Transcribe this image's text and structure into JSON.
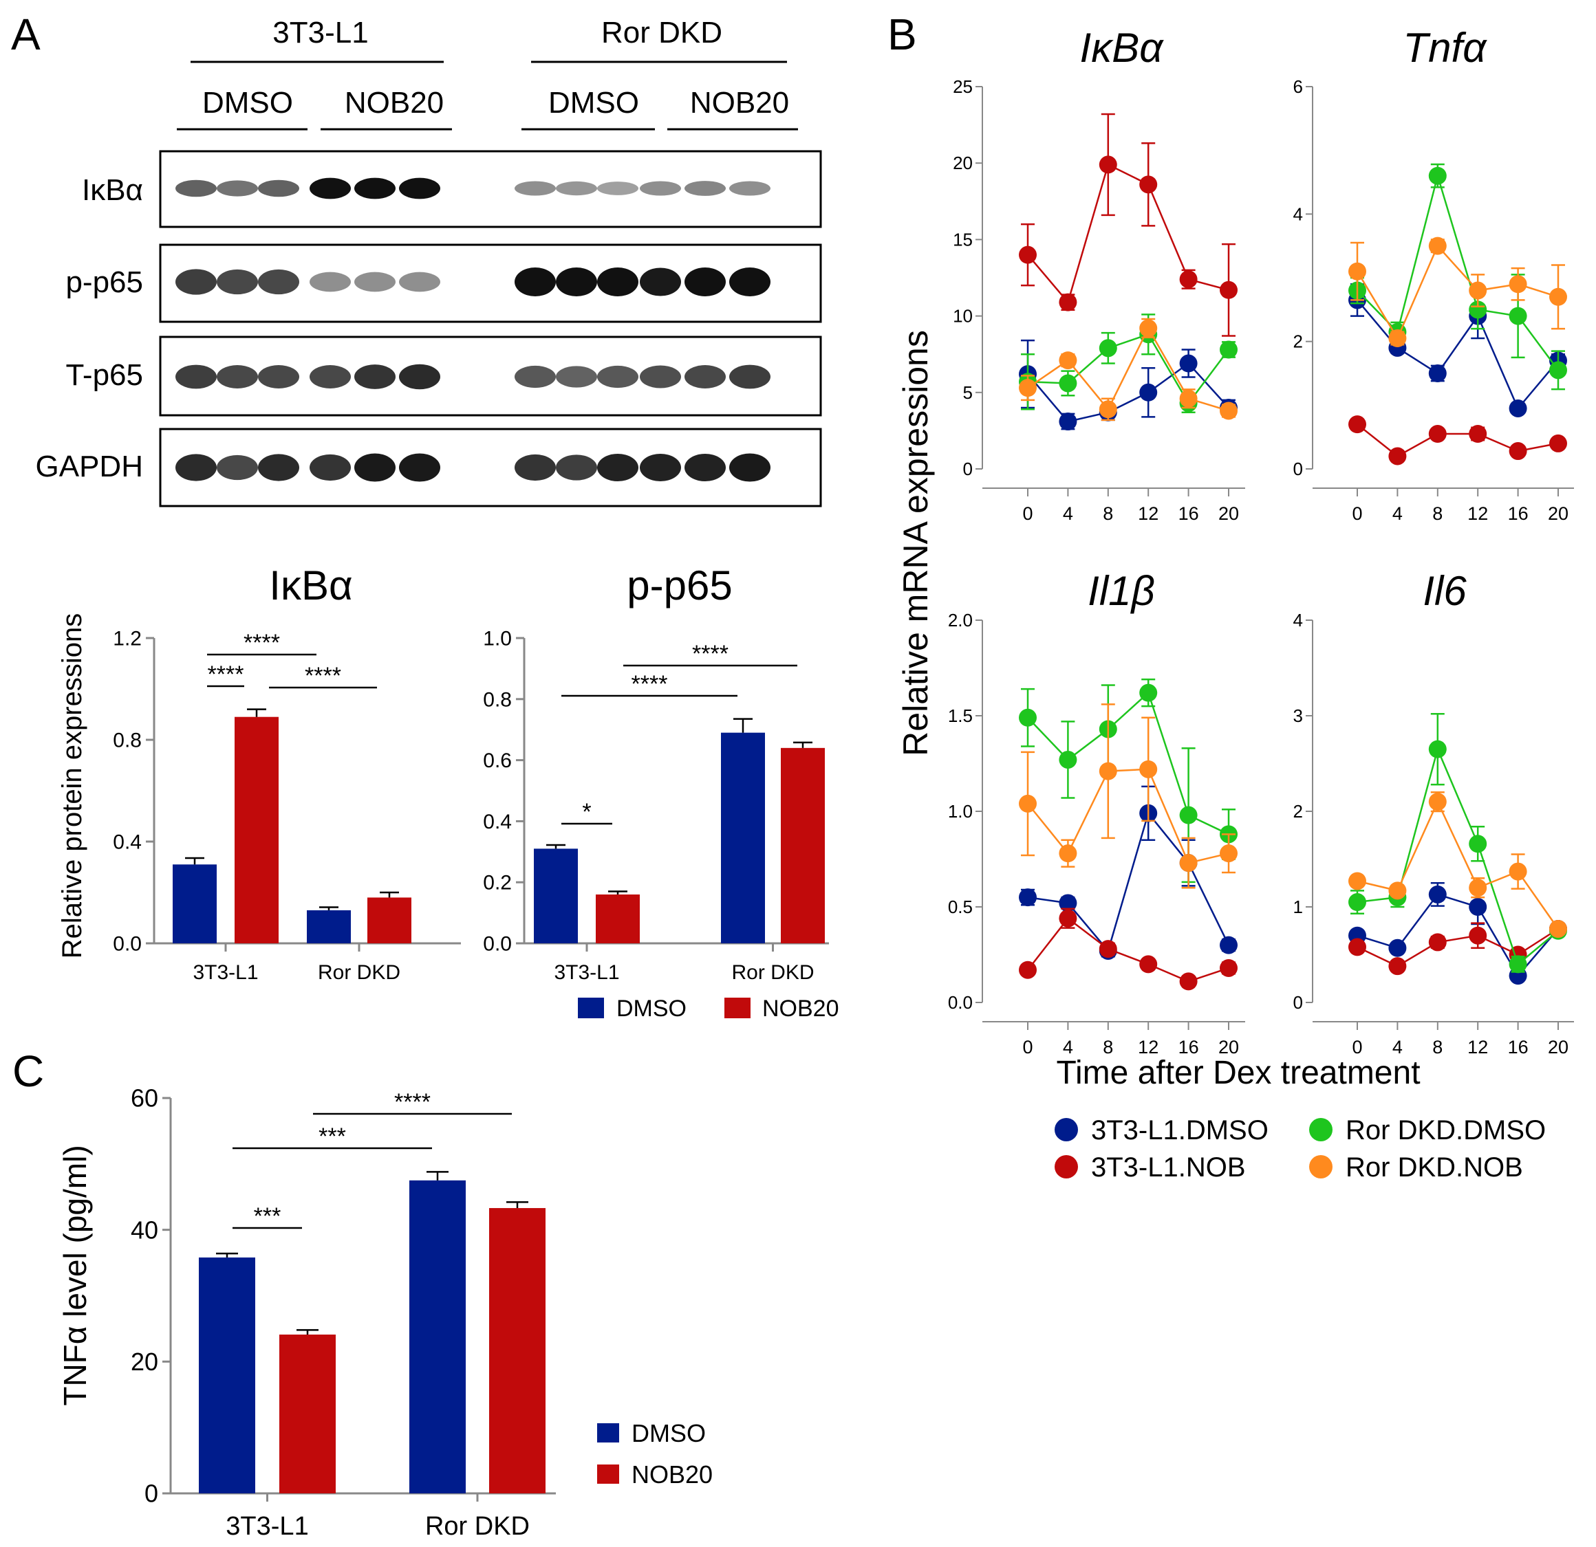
{
  "colors": {
    "dmso": "#001c8c",
    "nob": "#c10a0b",
    "ror_dmso": "#1ec51e",
    "ror_nob": "#ff8a1e",
    "blot_band": "#111111",
    "axis": "#888888"
  },
  "panel_labels": {
    "a": "A",
    "b": "B",
    "c": "C"
  },
  "blot": {
    "group_labels": [
      "3T3-L1",
      "Ror DKD"
    ],
    "treatment_labels": [
      "DMSO",
      "NOB20",
      "DMSO",
      "NOB20"
    ],
    "row_labels": [
      "IκBα",
      "p-p65",
      "T-p65",
      "GAPDH"
    ],
    "lanes_per_treatment": 3,
    "band_intensity": [
      [
        0.55,
        0.45,
        0.55,
        1.0,
        1.0,
        1.0,
        0.3,
        0.25,
        0.2,
        0.3,
        0.35,
        0.3
      ],
      [
        0.75,
        0.7,
        0.7,
        0.3,
        0.3,
        0.3,
        1.0,
        1.0,
        1.0,
        0.95,
        1.0,
        1.0
      ],
      [
        0.75,
        0.7,
        0.7,
        0.7,
        0.8,
        0.85,
        0.6,
        0.55,
        0.6,
        0.65,
        0.7,
        0.75
      ],
      [
        0.85,
        0.7,
        0.85,
        0.8,
        0.95,
        0.95,
        0.8,
        0.75,
        0.9,
        0.9,
        0.9,
        0.95
      ]
    ]
  },
  "chart_data": [
    {
      "id": "A-ikba",
      "type": "bar",
      "title": "IκBα",
      "ylabel": "Relative protein expressions",
      "categories": [
        "3T3-L1",
        "Ror DKD"
      ],
      "series": [
        {
          "name": "DMSO",
          "values": [
            0.31,
            0.13
          ],
          "errors": [
            0.025,
            0.012
          ]
        },
        {
          "name": "NOB20",
          "values": [
            0.89,
            0.18
          ],
          "errors": [
            0.03,
            0.02
          ]
        }
      ],
      "ylim": [
        0,
        1.2
      ],
      "yticks": [
        "0.0",
        "0.4",
        "0.8",
        "1.2"
      ],
      "ytick_values": [
        0,
        0.4,
        0.8,
        1.2
      ],
      "significance": [
        {
          "from": "3T3-L1.DMSO",
          "to": "Ror DKD.DMSO",
          "label": "****"
        },
        {
          "from": "3T3-L1.DMSO",
          "to": "3T3-L1.NOB20",
          "label": "****"
        },
        {
          "from": "3T3-L1.NOB20",
          "to": "Ror DKD.NOB20",
          "label": "****"
        }
      ]
    },
    {
      "id": "A-pp65",
      "type": "bar",
      "title": "p-p65",
      "categories": [
        "3T3-L1",
        "Ror DKD"
      ],
      "series": [
        {
          "name": "DMSO",
          "values": [
            0.31,
            0.69
          ],
          "errors": [
            0.012,
            0.045
          ]
        },
        {
          "name": "NOB20",
          "values": [
            0.16,
            0.64
          ],
          "errors": [
            0.01,
            0.018
          ]
        }
      ],
      "ylim": [
        0,
        1.0
      ],
      "yticks": [
        "0.0",
        "0.2",
        "0.4",
        "0.6",
        "0.8",
        "1.0"
      ],
      "ytick_values": [
        0,
        0.2,
        0.4,
        0.6,
        0.8,
        1.0
      ],
      "significance": [
        {
          "from": "3T3-L1.NOB20",
          "to": "Ror DKD.NOB20",
          "label": "****"
        },
        {
          "from": "3T3-L1.DMSO",
          "to": "Ror DKD.DMSO",
          "label": "****"
        },
        {
          "from": "3T3-L1.DMSO",
          "to": "3T3-L1.NOB20",
          "label": "*"
        }
      ],
      "legend": [
        "DMSO",
        "NOB20"
      ]
    },
    {
      "id": "B-ikba",
      "type": "line",
      "title": "IκBα",
      "x": [
        0,
        4,
        8,
        12,
        16,
        20
      ],
      "ylim": [
        0,
        25
      ],
      "yticks": [
        "0",
        "5",
        "10",
        "15",
        "20",
        "25"
      ],
      "ytick_values": [
        0,
        5,
        10,
        15,
        20,
        25
      ],
      "series": [
        {
          "name": "3T3-L1.DMSO",
          "values": [
            6.2,
            3.1,
            3.7,
            5.0,
            6.9,
            4.0
          ],
          "errors": [
            2.2,
            0.5,
            0.5,
            1.6,
            0.9,
            0.5
          ]
        },
        {
          "name": "3T3-L1.NOB",
          "values": [
            14.0,
            10.9,
            19.9,
            18.6,
            12.4,
            11.7
          ],
          "errors": [
            2.0,
            0.5,
            3.3,
            2.7,
            0.6,
            3.0
          ]
        },
        {
          "name": "Ror DKD.DMSO",
          "values": [
            5.7,
            5.6,
            7.9,
            8.8,
            4.3,
            7.8
          ],
          "errors": [
            1.8,
            0.8,
            1.0,
            1.3,
            0.6,
            0.5
          ]
        },
        {
          "name": "Ror DKD.NOB",
          "values": [
            5.3,
            7.1,
            3.9,
            9.2,
            4.6,
            3.8
          ],
          "errors": [
            0.8,
            0.4,
            0.7,
            0.6,
            0.6,
            0.4
          ]
        }
      ]
    },
    {
      "id": "B-tnfa",
      "type": "line",
      "title": "Tnfα",
      "x": [
        0,
        4,
        8,
        12,
        16,
        20
      ],
      "ylim": [
        0,
        6
      ],
      "yticks": [
        "0",
        "2",
        "4",
        "6"
      ],
      "ytick_values": [
        0,
        2,
        4,
        6
      ],
      "series": [
        {
          "name": "3T3-L1.DMSO",
          "values": [
            2.65,
            1.9,
            1.5,
            2.4,
            0.95,
            1.7
          ],
          "errors": [
            0.25,
            0.08,
            0.12,
            0.35,
            0.05,
            0.1
          ]
        },
        {
          "name": "3T3-L1.NOB",
          "values": [
            0.7,
            0.2,
            0.55,
            0.55,
            0.28,
            0.4
          ],
          "errors": [
            0.08,
            0.03,
            0.05,
            0.1,
            0.05,
            0.05
          ]
        },
        {
          "name": "Ror DKD.DMSO",
          "values": [
            2.8,
            2.15,
            4.6,
            2.5,
            2.4,
            1.55
          ],
          "errors": [
            0.2,
            0.15,
            0.18,
            0.3,
            0.65,
            0.3
          ]
        },
        {
          "name": "Ror DKD.NOB",
          "values": [
            3.1,
            2.05,
            3.5,
            2.8,
            2.9,
            2.7
          ],
          "errors": [
            0.45,
            0.1,
            0.1,
            0.25,
            0.25,
            0.5
          ]
        }
      ]
    },
    {
      "id": "B-il1b",
      "type": "line",
      "title": "Il1β",
      "x": [
        0,
        4,
        8,
        12,
        16,
        20
      ],
      "ylim": [
        0,
        2.0
      ],
      "yticks": [
        "0.0",
        "0.5",
        "1.0",
        "1.5",
        "2.0"
      ],
      "ytick_values": [
        0,
        0.5,
        1.0,
        1.5,
        2.0
      ],
      "series": [
        {
          "name": "3T3-L1.DMSO",
          "values": [
            0.55,
            0.52,
            0.27,
            0.99,
            0.73,
            0.3
          ],
          "errors": [
            0.04,
            0.03,
            0.03,
            0.14,
            0.12,
            0.03
          ]
        },
        {
          "name": "3T3-L1.NOB",
          "values": [
            0.17,
            0.44,
            0.28,
            0.2,
            0.11,
            0.18
          ],
          "errors": [
            0.02,
            0.05,
            0.03,
            0.02,
            0.02,
            0.03
          ]
        },
        {
          "name": "Ror DKD.DMSO",
          "values": [
            1.49,
            1.27,
            1.43,
            1.62,
            0.98,
            0.88
          ],
          "errors": [
            0.15,
            0.2,
            0.23,
            0.07,
            0.35,
            0.13
          ]
        },
        {
          "name": "Ror DKD.NOB",
          "values": [
            1.04,
            0.78,
            1.21,
            1.22,
            0.73,
            0.78
          ],
          "errors": [
            0.27,
            0.07,
            0.35,
            0.27,
            0.13,
            0.1
          ]
        }
      ]
    },
    {
      "id": "B-il6",
      "type": "line",
      "title": "Il6",
      "x": [
        0,
        4,
        8,
        12,
        16,
        20
      ],
      "ylim": [
        0,
        4
      ],
      "yticks": [
        "0",
        "1",
        "2",
        "3",
        "4"
      ],
      "ytick_values": [
        0,
        1,
        2,
        3,
        4
      ],
      "series": [
        {
          "name": "3T3-L1.DMSO",
          "values": [
            0.7,
            0.57,
            1.13,
            1.0,
            0.28,
            0.77
          ],
          "errors": [
            0.05,
            0.04,
            0.12,
            0.18,
            0.03,
            0.05
          ]
        },
        {
          "name": "3T3-L1.NOB",
          "values": [
            0.58,
            0.38,
            0.63,
            0.7,
            0.5,
            0.77
          ],
          "errors": [
            0.04,
            0.04,
            0.06,
            0.13,
            0.05,
            0.05
          ]
        },
        {
          "name": "Ror DKD.DMSO",
          "values": [
            1.05,
            1.1,
            2.65,
            1.66,
            0.4,
            0.75
          ],
          "errors": [
            0.12,
            0.1,
            0.37,
            0.18,
            0.08,
            0.05
          ]
        },
        {
          "name": "Ror DKD.NOB",
          "values": [
            1.27,
            1.17,
            2.1,
            1.2,
            1.37,
            0.77
          ],
          "errors": [
            0.05,
            0.05,
            0.1,
            0.1,
            0.18,
            0.05
          ]
        }
      ]
    },
    {
      "id": "C-tnfa",
      "type": "bar",
      "ylabel": "TNFα level (pg/ml)",
      "categories": [
        "3T3-L1",
        "Ror DKD"
      ],
      "series": [
        {
          "name": "DMSO",
          "values": [
            35.8,
            47.5
          ],
          "errors": [
            0.6,
            1.3
          ]
        },
        {
          "name": "NOB20",
          "values": [
            24.1,
            43.3
          ],
          "errors": [
            0.7,
            0.9
          ]
        }
      ],
      "ylim": [
        0,
        60
      ],
      "yticks": [
        "0",
        "20",
        "40",
        "60"
      ],
      "ytick_values": [
        0,
        20,
        40,
        60
      ],
      "significance": [
        {
          "from": "3T3-L1.NOB20",
          "to": "Ror DKD.NOB20",
          "label": "****"
        },
        {
          "from": "3T3-L1.DMSO",
          "to": "Ror DKD.DMSO",
          "label": "***"
        },
        {
          "from": "3T3-L1.DMSO",
          "to": "3T3-L1.NOB20",
          "label": "***"
        }
      ],
      "legend": [
        "DMSO",
        "NOB20"
      ]
    }
  ],
  "panel_b": {
    "ylabel": "Relative mRNA expressions",
    "xlabel": "Time after Dex treatment",
    "xticks": [
      "0",
      "4",
      "8",
      "12",
      "16",
      "20"
    ],
    "legend": [
      "3T3-L1.DMSO",
      "Ror DKD.DMSO",
      "3T3-L1.NOB",
      "Ror DKD.NOB"
    ]
  }
}
